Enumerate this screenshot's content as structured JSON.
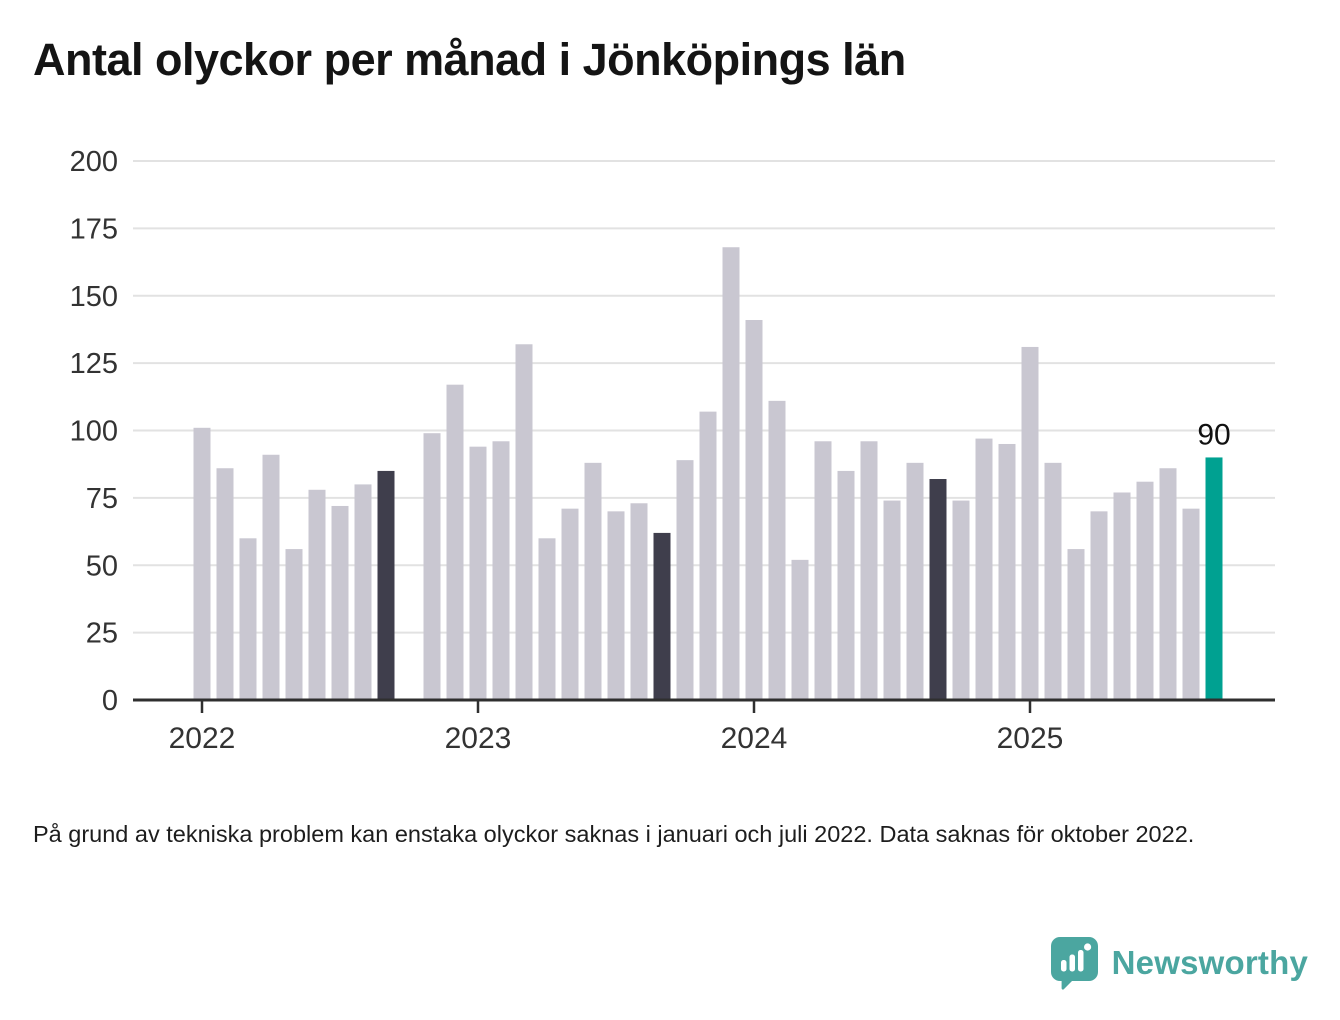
{
  "chart_data": {
    "type": "bar",
    "title": "Antal olyckor per månad i Jönköpings län",
    "xlabel": "",
    "ylabel": "",
    "ylim": [
      0,
      200
    ],
    "yticks": [
      0,
      25,
      50,
      75,
      100,
      125,
      150,
      175,
      200
    ],
    "grid": true,
    "bars": [
      {
        "month": "2022-01",
        "value": 101,
        "highlight": "none"
      },
      {
        "month": "2022-02",
        "value": 86,
        "highlight": "none"
      },
      {
        "month": "2022-03",
        "value": 60,
        "highlight": "none"
      },
      {
        "month": "2022-04",
        "value": 91,
        "highlight": "none"
      },
      {
        "month": "2022-05",
        "value": 56,
        "highlight": "none"
      },
      {
        "month": "2022-06",
        "value": 78,
        "highlight": "none"
      },
      {
        "month": "2022-07",
        "value": 72,
        "highlight": "none"
      },
      {
        "month": "2022-08",
        "value": 80,
        "highlight": "none"
      },
      {
        "month": "2022-09",
        "value": 85,
        "highlight": "dark"
      },
      {
        "month": "2022-10",
        "value": null,
        "highlight": "none"
      },
      {
        "month": "2022-11",
        "value": 99,
        "highlight": "none"
      },
      {
        "month": "2022-12",
        "value": 117,
        "highlight": "none"
      },
      {
        "month": "2023-01",
        "value": 94,
        "highlight": "none"
      },
      {
        "month": "2023-02",
        "value": 96,
        "highlight": "none"
      },
      {
        "month": "2023-03",
        "value": 132,
        "highlight": "none"
      },
      {
        "month": "2023-04",
        "value": 60,
        "highlight": "none"
      },
      {
        "month": "2023-05",
        "value": 71,
        "highlight": "none"
      },
      {
        "month": "2023-06",
        "value": 88,
        "highlight": "none"
      },
      {
        "month": "2023-07",
        "value": 70,
        "highlight": "none"
      },
      {
        "month": "2023-08",
        "value": 73,
        "highlight": "none"
      },
      {
        "month": "2023-09",
        "value": 62,
        "highlight": "dark"
      },
      {
        "month": "2023-10",
        "value": 89,
        "highlight": "none"
      },
      {
        "month": "2023-11",
        "value": 107,
        "highlight": "none"
      },
      {
        "month": "2023-12",
        "value": 168,
        "highlight": "none"
      },
      {
        "month": "2024-01",
        "value": 141,
        "highlight": "none"
      },
      {
        "month": "2024-02",
        "value": 111,
        "highlight": "none"
      },
      {
        "month": "2024-03",
        "value": 52,
        "highlight": "none"
      },
      {
        "month": "2024-04",
        "value": 96,
        "highlight": "none"
      },
      {
        "month": "2024-05",
        "value": 85,
        "highlight": "none"
      },
      {
        "month": "2024-06",
        "value": 96,
        "highlight": "none"
      },
      {
        "month": "2024-07",
        "value": 74,
        "highlight": "none"
      },
      {
        "month": "2024-08",
        "value": 88,
        "highlight": "none"
      },
      {
        "month": "2024-09",
        "value": 82,
        "highlight": "dark"
      },
      {
        "month": "2024-10",
        "value": 74,
        "highlight": "none"
      },
      {
        "month": "2024-11",
        "value": 97,
        "highlight": "none"
      },
      {
        "month": "2024-12",
        "value": 95,
        "highlight": "none"
      },
      {
        "month": "2025-01",
        "value": 131,
        "highlight": "none"
      },
      {
        "month": "2025-02",
        "value": 88,
        "highlight": "none"
      },
      {
        "month": "2025-03",
        "value": 56,
        "highlight": "none"
      },
      {
        "month": "2025-04",
        "value": 70,
        "highlight": "none"
      },
      {
        "month": "2025-05",
        "value": 77,
        "highlight": "none"
      },
      {
        "month": "2025-06",
        "value": 81,
        "highlight": "none"
      },
      {
        "month": "2025-07",
        "value": 86,
        "highlight": "none"
      },
      {
        "month": "2025-08",
        "value": 71,
        "highlight": "none"
      },
      {
        "month": "2025-09",
        "value": 90,
        "highlight": "accent"
      }
    ],
    "year_ticks": [
      {
        "label": "2022",
        "month_index": 0
      },
      {
        "label": "2023",
        "month_index": 12
      },
      {
        "label": "2024",
        "month_index": 24
      },
      {
        "label": "2025",
        "month_index": 36
      }
    ],
    "annotation": {
      "text": "90",
      "month_index": 44
    },
    "legend": "none",
    "colors": {
      "bar": "#c9c7d1",
      "bar_dark": "#3f3e4c",
      "bar_accent": "#00a191",
      "grid": "#e2e2e2",
      "axis": "#2f2f2f",
      "tick_text": "#333333",
      "annotation_text": "#111111"
    }
  },
  "footnote": "På grund av tekniska problem kan enstaka olyckor saknas i januari och juli 2022. Data saknas för oktober 2022.",
  "logo": {
    "text": "Newsworthy",
    "color": "#4ba6a0",
    "icon": "speech-bubble-bar-chart-icon"
  }
}
